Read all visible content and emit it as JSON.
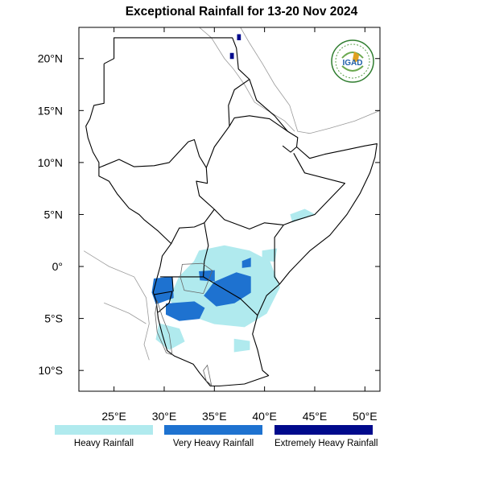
{
  "title": "Exceptional Rainfall for 13-20 Nov 2024",
  "logo": {
    "text": "IGAD"
  },
  "axes": {
    "lon_range": [
      21.5,
      51.5
    ],
    "lat_range": [
      -12,
      23
    ],
    "lon_ticks": [
      {
        "value": 25,
        "label": "25°E"
      },
      {
        "value": 30,
        "label": "30°E"
      },
      {
        "value": 35,
        "label": "35°E"
      },
      {
        "value": 40,
        "label": "40°E"
      },
      {
        "value": 45,
        "label": "45°E"
      },
      {
        "value": 50,
        "label": "50°E"
      }
    ],
    "lat_ticks": [
      {
        "value": 20,
        "label": "20°N"
      },
      {
        "value": 15,
        "label": "15°N"
      },
      {
        "value": 10,
        "label": "10°N"
      },
      {
        "value": 5,
        "label": "5°N"
      },
      {
        "value": 0,
        "label": "0°"
      },
      {
        "value": -5,
        "label": "5°S"
      },
      {
        "value": -10,
        "label": "10°S"
      }
    ]
  },
  "legend": [
    {
      "label": "Heavy Rainfall",
      "color": "#b0eaee"
    },
    {
      "label": "Very Heavy Rainfall",
      "color": "#1e72d0"
    },
    {
      "label": "Extremely Heavy Rainfall",
      "color": "#000a8c"
    }
  ],
  "colors": {
    "heavy": "#b0eaee",
    "very_heavy": "#1e72d0",
    "extreme": "#000a8c",
    "border": "#000000",
    "outside_border": "#9a9a9a"
  },
  "rain_areas": {
    "heavy": [
      [
        [
          33.5,
          1.5
        ],
        [
          36.0,
          2.0
        ],
        [
          38.5,
          1.5
        ],
        [
          40.5,
          0.5
        ],
        [
          41.5,
          -2.0
        ],
        [
          40.2,
          -4.5
        ],
        [
          38.0,
          -5.8
        ],
        [
          35.0,
          -5.5
        ],
        [
          32.0,
          -4.5
        ],
        [
          30.5,
          -3.2
        ],
        [
          31.5,
          -1.0
        ],
        [
          33.0,
          0.5
        ]
      ],
      [
        [
          29.5,
          -5.5
        ],
        [
          31.5,
          -6.0
        ],
        [
          32.0,
          -7.2
        ],
        [
          30.5,
          -8.0
        ],
        [
          29.2,
          -7.0
        ]
      ],
      [
        [
          37.0,
          -7.0
        ],
        [
          38.5,
          -7.2
        ],
        [
          38.5,
          -8.0
        ],
        [
          37.0,
          -8.2
        ]
      ],
      [
        [
          42.8,
          4.3
        ],
        [
          45.0,
          5.0
        ],
        [
          44.0,
          5.5
        ],
        [
          42.6,
          5.0
        ]
      ],
      [
        [
          39.8,
          1.5
        ],
        [
          41.2,
          1.7
        ],
        [
          41.0,
          0.5
        ],
        [
          39.8,
          0.6
        ]
      ]
    ],
    "very_heavy": [
      [
        [
          35.0,
          -1.5
        ],
        [
          37.2,
          -0.6
        ],
        [
          38.6,
          -1.0
        ],
        [
          38.6,
          -2.5
        ],
        [
          37.0,
          -3.5
        ],
        [
          35.2,
          -3.8
        ],
        [
          34.0,
          -2.8
        ]
      ],
      [
        [
          33.5,
          -0.5
        ],
        [
          35.0,
          -0.4
        ],
        [
          35.0,
          -1.4
        ],
        [
          33.6,
          -1.3
        ]
      ],
      [
        [
          29.0,
          -1.2
        ],
        [
          30.8,
          -1.0
        ],
        [
          30.9,
          -3.0
        ],
        [
          29.2,
          -3.6
        ],
        [
          28.8,
          -2.5
        ]
      ],
      [
        [
          30.2,
          -3.6
        ],
        [
          33.0,
          -3.4
        ],
        [
          34.0,
          -4.0
        ],
        [
          33.5,
          -5.0
        ],
        [
          31.5,
          -5.2
        ],
        [
          30.2,
          -4.6
        ]
      ],
      [
        [
          37.8,
          0.5
        ],
        [
          38.6,
          0.8
        ],
        [
          38.6,
          0.0
        ],
        [
          37.8,
          -0.1
        ]
      ]
    ],
    "extreme": [
      [
        [
          37.3,
          22.3
        ],
        [
          37.6,
          22.3
        ],
        [
          37.6,
          21.8
        ],
        [
          37.3,
          21.8
        ]
      ],
      [
        [
          36.6,
          20.5
        ],
        [
          36.9,
          20.5
        ],
        [
          36.9,
          20.0
        ],
        [
          36.6,
          20.0
        ]
      ]
    ]
  }
}
